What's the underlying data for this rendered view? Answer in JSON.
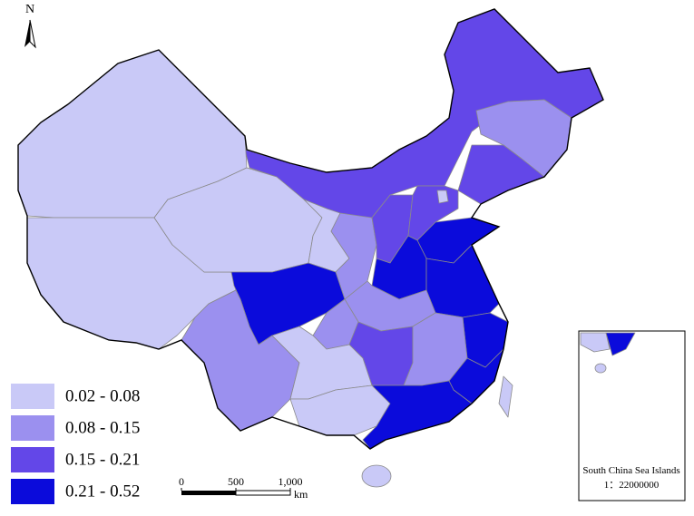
{
  "north_label": "N",
  "legend": {
    "items": [
      {
        "label": "0.02 - 0.08",
        "color": "#c9c9f7"
      },
      {
        "label": "0.08 - 0.15",
        "color": "#9b90ef"
      },
      {
        "label": "0.15 - 0.21",
        "color": "#6347e8"
      },
      {
        "label": "0.21 - 0.52",
        "color": "#0b0bdb"
      }
    ]
  },
  "scale_bar": {
    "ticks": [
      0,
      500,
      {
        "value": 1000,
        "label": "1,000"
      }
    ],
    "unit": "km"
  },
  "inset": {
    "title": "South China Sea Islands",
    "scale": "1：22000000"
  }
}
